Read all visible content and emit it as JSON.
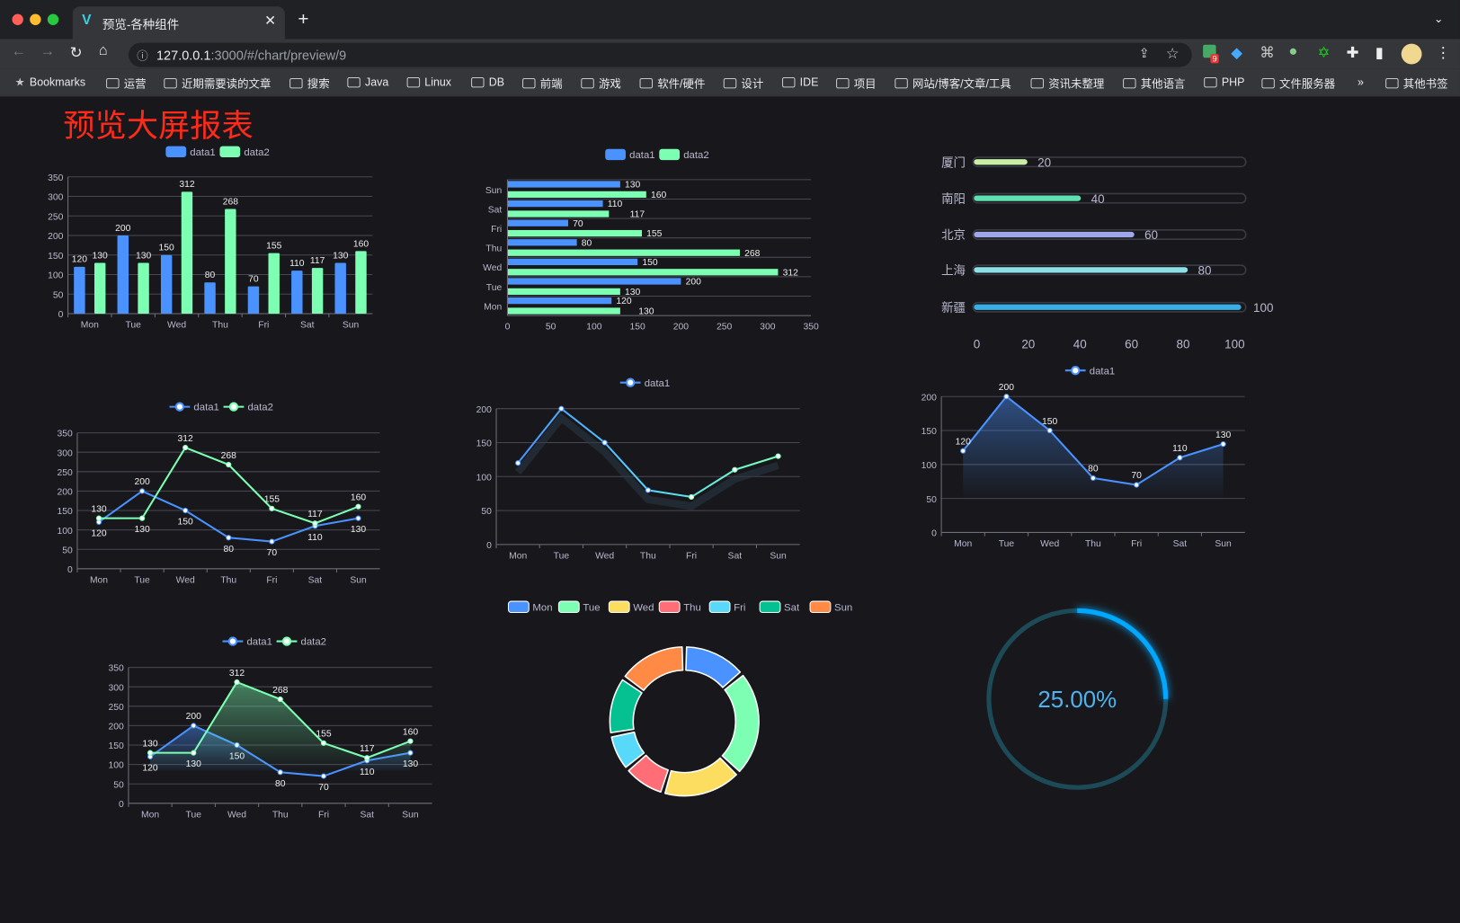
{
  "browser": {
    "tab_title": "预览-各种组件",
    "url_host": "127.0.0.1",
    "url_rest": ":3000/#/chart/preview/9",
    "extension_badge": "9",
    "bookmarks": [
      "Bookmarks",
      "运营",
      "近期需要读的文章",
      "搜索",
      "Java",
      "Linux",
      "DB",
      "前端",
      "游戏",
      "软件/硬件",
      "设计",
      "IDE",
      "项目",
      "网站/博客/文章/工具",
      "资讯未整理",
      "其他语言",
      "PHP",
      "文件服务器"
    ],
    "more": "»",
    "other_bookmarks": "其他书签"
  },
  "page": {
    "title": "预览大屏报表"
  },
  "colors": {
    "data1": "#4992ff",
    "data2": "#7cffb2",
    "ring": "#00a8ff",
    "ring_track": "#1d4a57",
    "title": "#ff2a1a"
  },
  "chart_data": [
    {
      "id": "bar",
      "type": "bar",
      "categories": [
        "Mon",
        "Tue",
        "Wed",
        "Thu",
        "Fri",
        "Sat",
        "Sun"
      ],
      "series": [
        {
          "name": "data1",
          "values": [
            120,
            200,
            150,
            80,
            70,
            110,
            130
          ]
        },
        {
          "name": "data2",
          "values": [
            130,
            130,
            312,
            268,
            155,
            117,
            160
          ]
        }
      ],
      "ylim": [
        0,
        350
      ],
      "yticks": [
        0,
        50,
        100,
        150,
        200,
        250,
        300,
        350
      ],
      "grid": true,
      "legend": "top-center"
    },
    {
      "id": "hbar",
      "type": "bar",
      "orientation": "horizontal",
      "categories": [
        "Mon",
        "Tue",
        "Wed",
        "Thu",
        "Fri",
        "Sat",
        "Sun"
      ],
      "series": [
        {
          "name": "data1",
          "values": [
            120,
            200,
            150,
            80,
            70,
            110,
            130
          ]
        },
        {
          "name": "data2",
          "values": [
            130,
            130,
            312,
            268,
            155,
            117,
            160
          ]
        }
      ],
      "xlim": [
        0,
        350
      ],
      "xticks": [
        0,
        50,
        100,
        150,
        200,
        250,
        300,
        350
      ],
      "grid": true,
      "legend": "top-center"
    },
    {
      "id": "progress",
      "type": "bar",
      "orientation": "horizontal",
      "categories": [
        "厦门",
        "南阳",
        "北京",
        "上海",
        "新疆"
      ],
      "values": [
        20,
        40,
        60,
        80,
        100
      ],
      "colors": [
        "#c7f0a5",
        "#5ee0b0",
        "#9da7ea",
        "#8ee0e8",
        "#36b0e6"
      ],
      "xlim": [
        0,
        100
      ],
      "xticks": [
        0,
        20,
        40,
        60,
        80,
        100
      ]
    },
    {
      "id": "line2",
      "type": "line",
      "categories": [
        "Mon",
        "Tue",
        "Wed",
        "Thu",
        "Fri",
        "Sat",
        "Sun"
      ],
      "series": [
        {
          "name": "data1",
          "values": [
            120,
            200,
            150,
            80,
            70,
            110,
            130
          ]
        },
        {
          "name": "data2",
          "values": [
            130,
            130,
            312,
            268,
            155,
            117,
            160
          ]
        }
      ],
      "ylim": [
        0,
        350
      ],
      "yticks": [
        0,
        50,
        100,
        150,
        200,
        250,
        300,
        350
      ],
      "grid": true,
      "legend": "top-center"
    },
    {
      "id": "line1",
      "type": "line",
      "gradient": true,
      "categories": [
        "Mon",
        "Tue",
        "Wed",
        "Thu",
        "Fri",
        "Sat",
        "Sun"
      ],
      "series": [
        {
          "name": "data1",
          "values": [
            120,
            200,
            150,
            80,
            70,
            110,
            130
          ]
        }
      ],
      "ylim": [
        0,
        200
      ],
      "yticks": [
        0,
        50,
        100,
        150,
        200
      ],
      "grid": true,
      "legend": "top-center"
    },
    {
      "id": "area1",
      "type": "area",
      "categories": [
        "Mon",
        "Tue",
        "Wed",
        "Thu",
        "Fri",
        "Sat",
        "Sun"
      ],
      "series": [
        {
          "name": "data1",
          "values": [
            120,
            200,
            150,
            80,
            70,
            110,
            130
          ]
        }
      ],
      "ylim": [
        0,
        200
      ],
      "yticks": [
        0,
        50,
        100,
        150,
        200
      ],
      "grid": true,
      "legend": "top-center"
    },
    {
      "id": "area2",
      "type": "area",
      "categories": [
        "Mon",
        "Tue",
        "Wed",
        "Thu",
        "Fri",
        "Sat",
        "Sun"
      ],
      "series": [
        {
          "name": "data1",
          "values": [
            120,
            200,
            150,
            80,
            70,
            110,
            130
          ]
        },
        {
          "name": "data2",
          "values": [
            130,
            130,
            312,
            268,
            155,
            117,
            160
          ]
        }
      ],
      "ylim": [
        0,
        350
      ],
      "yticks": [
        0,
        50,
        100,
        150,
        200,
        250,
        300,
        350
      ],
      "grid": true,
      "legend": "top-center"
    },
    {
      "id": "pie",
      "type": "pie",
      "donut": true,
      "categories": [
        "Mon",
        "Tue",
        "Wed",
        "Thu",
        "Fri",
        "Sat",
        "Sun"
      ],
      "values": [
        120,
        200,
        150,
        80,
        70,
        110,
        130
      ],
      "colors": [
        "#4992ff",
        "#7cffb2",
        "#fddd60",
        "#ff6e76",
        "#58d9f9",
        "#05c091",
        "#ff8a45"
      ],
      "legend": "top-center"
    },
    {
      "id": "ring",
      "type": "pie",
      "progress": 0.25,
      "label": "25.00%"
    }
  ]
}
